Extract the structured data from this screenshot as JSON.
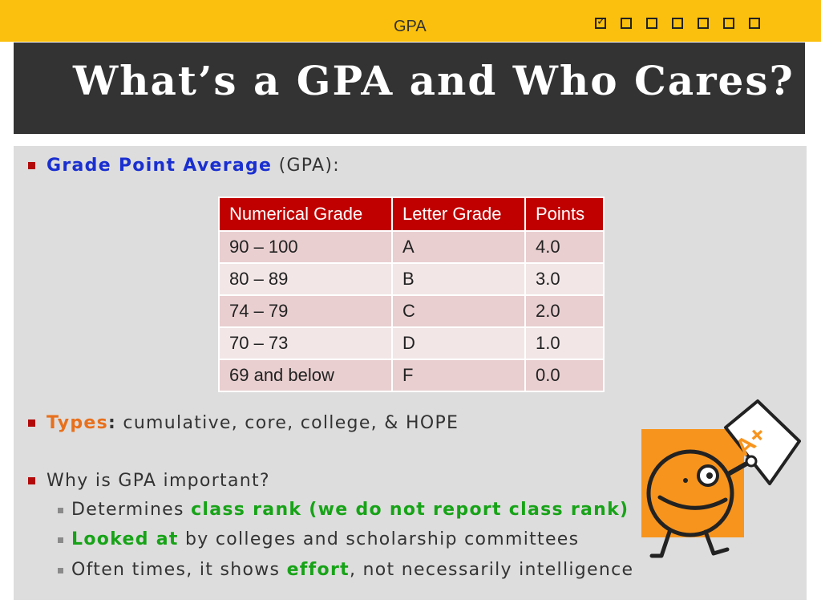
{
  "header": {
    "label": "GPA",
    "progress_boxes": [
      true,
      false,
      false,
      false,
      false,
      false,
      false
    ]
  },
  "title": "What’s a GPA and Who Cares?",
  "bullet1": {
    "term": "Grade Point Average",
    "rest": " (GPA):"
  },
  "table": {
    "headers": [
      "Numerical Grade",
      "Letter Grade",
      "Points"
    ],
    "rows": [
      [
        "90 – 100",
        "A",
        "4.0"
      ],
      [
        "80 – 89",
        "B",
        "3.0"
      ],
      [
        "74 – 79",
        "C",
        "2.0"
      ],
      [
        "70 – 73",
        "D",
        "1.0"
      ],
      [
        "69 and below",
        "F",
        "0.0"
      ]
    ]
  },
  "bullet2": {
    "term": "Types",
    "colon": ":",
    "rest": " cumulative, core, college, & HOPE"
  },
  "bullet3": {
    "text": "Why is GPA important?"
  },
  "sub1": {
    "pre": "Determines ",
    "hl": "class rank (we do not report class rank)"
  },
  "sub2": {
    "hl": "Looked at",
    "post": " by colleges and scholarship committees"
  },
  "sub3": {
    "pre": "Often times, it shows ",
    "hl": "effort",
    "post": ", not necessarily intelligence"
  },
  "clipart": {
    "paper_text": "A+"
  },
  "colors": {
    "accent_yellow": "#fbc00d",
    "title_bg": "#333333",
    "table_header": "#c00000",
    "blue": "#1a2fd0",
    "orange": "#e8701c",
    "green": "#17a317"
  }
}
